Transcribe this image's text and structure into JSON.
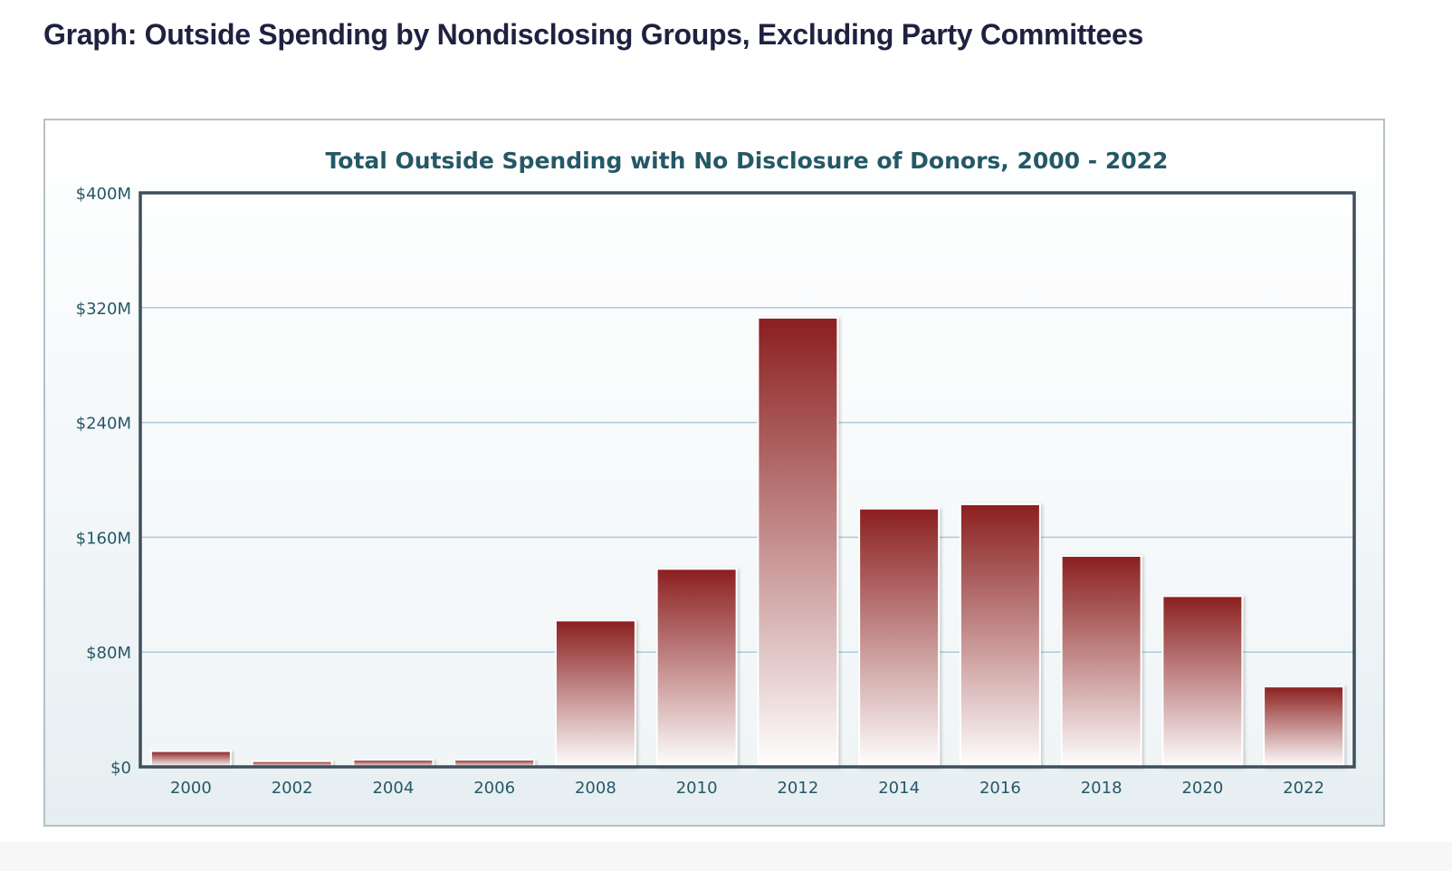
{
  "page": {
    "title": "Graph: Outside Spending by Nondisclosing Groups, Excluding Party Committees"
  },
  "colors": {
    "bar_top": "#8b1f1f",
    "bar_bottom": "#ffffff",
    "grid": "#a9ccda",
    "axis": "#3d4f5a",
    "text": "#255866"
  },
  "chart_data": {
    "type": "bar",
    "title": "Total Outside Spending with No Disclosure of Donors, 2000 - 2022",
    "xlabel": "",
    "ylabel": "",
    "categories": [
      "2000",
      "2002",
      "2004",
      "2006",
      "2008",
      "2010",
      "2012",
      "2014",
      "2016",
      "2018",
      "2020",
      "2022"
    ],
    "values": [
      11,
      4,
      5,
      5,
      102,
      138,
      313,
      180,
      183,
      147,
      119,
      56
    ],
    "value_unit": "millions USD",
    "ylim": [
      0,
      400
    ],
    "yticks": [
      0,
      80,
      160,
      240,
      320,
      400
    ],
    "ytick_labels": [
      "$0",
      "$80M",
      "$160M",
      "$240M",
      "$320M",
      "$400M"
    ],
    "grid": true,
    "legend": "none"
  }
}
